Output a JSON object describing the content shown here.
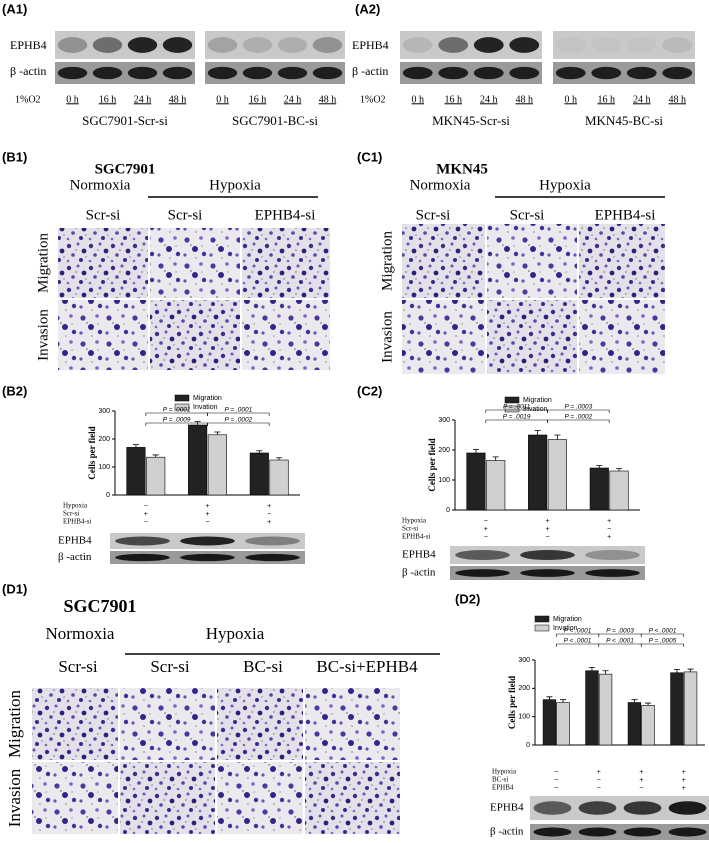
{
  "panels": {
    "a1": {
      "label": "(A1)",
      "rows": [
        "EPHB4",
        "β -actin"
      ],
      "condition": "1%O2",
      "groups": [
        {
          "name": "SGC7901-Scr-si",
          "times": [
            "0 h",
            "16 h",
            "24 h",
            "48 h"
          ]
        },
        {
          "name": "SGC7901-BC-si",
          "times": [
            "0 h",
            "16 h",
            "24 h",
            "48 h"
          ]
        }
      ]
    },
    "a2": {
      "label": "(A2)",
      "rows": [
        "EPHB4",
        "β -actin"
      ],
      "condition": "1%O2",
      "groups": [
        {
          "name": "MKN45-Scr-si",
          "times": [
            "0 h",
            "16 h",
            "24 h",
            "48 h"
          ]
        },
        {
          "name": "MKN45-BC-si",
          "times": [
            "0 h",
            "16 h",
            "24 h",
            "48 h"
          ]
        }
      ]
    },
    "b1": {
      "label": "(B1)",
      "cell_line": "SGC7901",
      "conditions": [
        "Normoxia",
        "Hypoxia"
      ],
      "columns": [
        "Scr-si",
        "Scr-si",
        "EPHB4-si"
      ],
      "rows": [
        "Migration",
        "Invasion"
      ]
    },
    "c1": {
      "label": "(C1)",
      "cell_line": "MKN45",
      "conditions": [
        "Normoxia",
        "Hypoxia"
      ],
      "columns": [
        "Scr-si",
        "Scr-si",
        "EPHB4-si"
      ],
      "rows": [
        "Migration",
        "Invasion"
      ]
    },
    "d1": {
      "label": "(D1)",
      "cell_line": "SGC7901",
      "conditions": [
        "Normoxia",
        "Hypoxia"
      ],
      "columns": [
        "Scr-si",
        "Scr-si",
        "BC-si",
        "BC-si+EPHB4"
      ],
      "rows": [
        "Migration",
        "Invasion"
      ]
    }
  },
  "chart_data": [
    {
      "type": "bar",
      "label": "(B2)",
      "y_label": "Cells per field",
      "categories": [
        null,
        null,
        null
      ],
      "series": [
        {
          "name": "Migration",
          "color": "#222222",
          "values": [
            170,
            250,
            150
          ],
          "errors": [
            10,
            12,
            8
          ]
        },
        {
          "name": "Invation",
          "color": "#d0d0d0",
          "values": [
            135,
            215,
            125
          ],
          "errors": [
            8,
            10,
            8
          ]
        }
      ],
      "ylim": [
        0,
        300
      ],
      "yticks": [
        0,
        100,
        200,
        300
      ],
      "annotations": [
        "P = .0001",
        "P = .0001",
        "P = .0009",
        "P = .0002"
      ],
      "treatments": [
        {
          "name": "Hypoxia",
          "marks": [
            "−",
            "+",
            "+"
          ]
        },
        {
          "name": "Scr-si",
          "marks": [
            "+",
            "+",
            "−"
          ]
        },
        {
          "name": "EPHB4-si",
          "marks": [
            "−",
            "−",
            "+"
          ]
        }
      ],
      "blot_rows": [
        "EPHB4",
        "β -actin"
      ]
    },
    {
      "type": "bar",
      "label": "(C2)",
      "y_label": "Cells per field",
      "categories": [
        null,
        null,
        null
      ],
      "series": [
        {
          "name": "Migration",
          "color": "#222222",
          "values": [
            190,
            250,
            140
          ],
          "errors": [
            12,
            15,
            8
          ]
        },
        {
          "name": "Invation",
          "color": "#d0d0d0",
          "values": [
            165,
            235,
            130
          ],
          "errors": [
            12,
            15,
            8
          ]
        }
      ],
      "ylim": [
        0,
        300
      ],
      "yticks": [
        0,
        100,
        200,
        300
      ],
      "annotations": [
        "P = .0011",
        "P = .0003",
        "P = .0019",
        "P = .0002"
      ],
      "treatments": [
        {
          "name": "Hypoxia",
          "marks": [
            "−",
            "+",
            "+"
          ]
        },
        {
          "name": "Scr-si",
          "marks": [
            "+",
            "+",
            "−"
          ]
        },
        {
          "name": "EPHB4-si",
          "marks": [
            "−",
            "−",
            "+"
          ]
        }
      ],
      "blot_rows": [
        "EPHB4",
        "β -actin"
      ]
    },
    {
      "type": "bar",
      "label": "(D2)",
      "y_label": "Cells per field",
      "categories": [
        null,
        null,
        null,
        null
      ],
      "series": [
        {
          "name": "Migration",
          "color": "#222222",
          "values": [
            160,
            262,
            150,
            255
          ],
          "errors": [
            10,
            12,
            10,
            12
          ]
        },
        {
          "name": "Invation",
          "color": "#d0d0d0",
          "values": [
            150,
            250,
            140,
            258
          ],
          "errors": [
            10,
            12,
            8,
            10
          ]
        }
      ],
      "ylim": [
        0,
        300
      ],
      "yticks": [
        0,
        100,
        200,
        300
      ],
      "annotations": [
        "P < .0001",
        "P = .0003",
        "P < .0001",
        "P < .0001",
        "P < .0001",
        "P = .0005"
      ],
      "treatments": [
        {
          "name": "Hypoxia",
          "marks": [
            "−",
            "+",
            "+",
            "+"
          ]
        },
        {
          "name": "BC-si",
          "marks": [
            "−",
            "−",
            "+",
            "+"
          ]
        },
        {
          "name": "EPHB4",
          "marks": [
            "−",
            "−",
            "−",
            "+"
          ]
        }
      ],
      "blot_rows": [
        "EPHB4",
        "β -actin"
      ]
    }
  ]
}
